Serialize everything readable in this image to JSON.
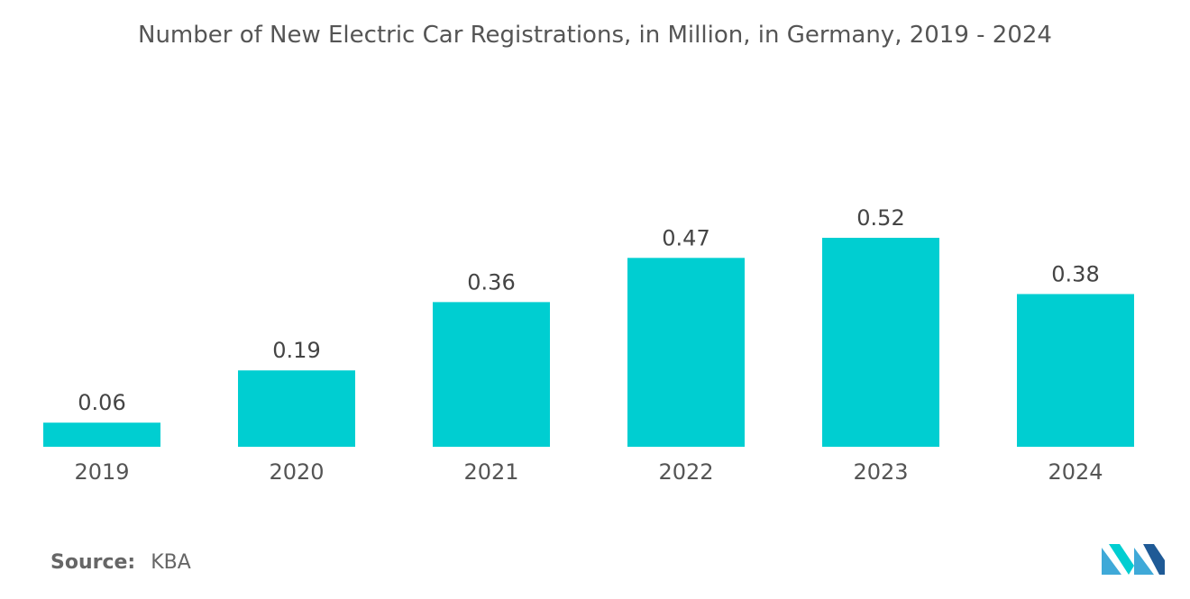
{
  "chart_data": {
    "type": "bar",
    "title": "Number of New Electric Car Registrations, in Million, in Germany, 2019 - 2024",
    "categories": [
      "2019",
      "2020",
      "2021",
      "2022",
      "2023",
      "2024"
    ],
    "values": [
      0.06,
      0.19,
      0.36,
      0.47,
      0.52,
      0.38
    ],
    "value_labels": [
      "0.06",
      "0.19",
      "0.36",
      "0.47",
      "0.52",
      "0.38"
    ],
    "xlabel": "",
    "ylabel": "",
    "ylim": [
      0,
      0.52
    ],
    "grid": false,
    "legend": "none",
    "bar_color": "#00CED1",
    "label_color": "#444444",
    "axis_text_color": "#555555"
  },
  "source": {
    "label": "Source:",
    "value": "KBA"
  },
  "logo": {
    "icon": "mordor-intelligence-logo-icon",
    "colors": [
      "#3FA9D8",
      "#00CED1",
      "#1F5A96"
    ]
  }
}
